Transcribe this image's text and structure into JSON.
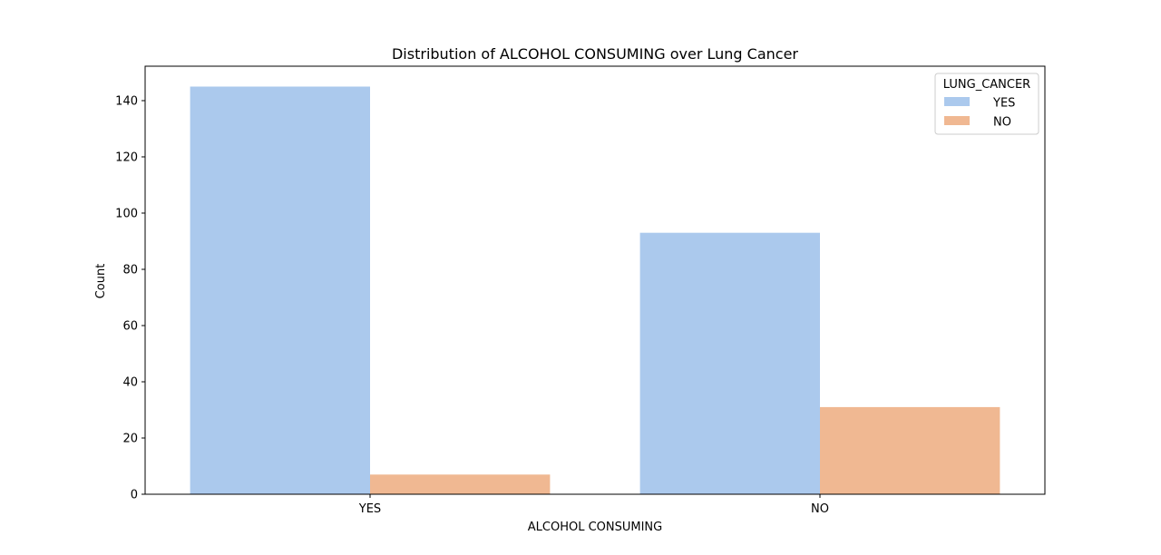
{
  "chart_data": {
    "type": "bar",
    "title": "Distribution of ALCOHOL CONSUMING over Lung Cancer",
    "xlabel": "ALCOHOL CONSUMING",
    "ylabel": "Count",
    "categories": [
      "YES",
      "NO"
    ],
    "series": [
      {
        "name": "YES",
        "values": [
          145,
          93
        ],
        "color": "#abc9ed"
      },
      {
        "name": "NO",
        "values": [
          7,
          31
        ],
        "color": "#f0b892"
      }
    ],
    "ylim": [
      0,
      152.25
    ],
    "yticks": [
      0,
      20,
      40,
      60,
      80,
      100,
      120,
      140
    ],
    "legend": {
      "title": "LUNG_CANCER",
      "position": "top-right"
    },
    "grid": false
  }
}
